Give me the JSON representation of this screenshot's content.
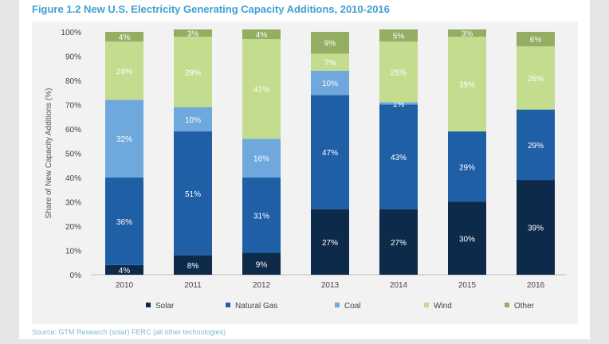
{
  "figure": {
    "title": "Figure 1.2  New U.S. Electricity Generating Capacity Additions, 2010-2016",
    "source": "Source: GTM Research (solar) FERC (all other technologies)"
  },
  "chart_data": {
    "type": "bar",
    "stacked": true,
    "title": "Figure 1.2  New U.S. Electricity Generating Capacity Additions, 2010-2016",
    "xlabel": "",
    "ylabel": "Share of New Capacity Additions (%)",
    "ylim": [
      0,
      100
    ],
    "yticks": [
      "0%",
      "10%",
      "20%",
      "30%",
      "40%",
      "50%",
      "60%",
      "70%",
      "80%",
      "90%",
      "100%"
    ],
    "categories": [
      "2010",
      "2011",
      "2012",
      "2013",
      "2014",
      "2015",
      "2016"
    ],
    "legend_position": "bottom",
    "grid": false,
    "series": [
      {
        "name": "Solar",
        "color": "#0d2a4a",
        "label_color": "#ffffff",
        "values": [
          4,
          8,
          9,
          27,
          27,
          30,
          39
        ],
        "labels": [
          "4%",
          "8%",
          "9%",
          "27%",
          "27%",
          "30%",
          "39%"
        ]
      },
      {
        "name": "Natural Gas",
        "color": "#1f5fa6",
        "label_color": "#ffffff",
        "values": [
          36,
          51,
          31,
          47,
          43,
          29,
          29
        ],
        "labels": [
          "36%",
          "51%",
          "31%",
          "47%",
          "43%",
          "29%",
          "29%"
        ]
      },
      {
        "name": "Coal",
        "color": "#6fa8dc",
        "label_color": "#ffffff",
        "values": [
          32,
          10,
          16,
          10,
          1,
          0,
          0
        ],
        "labels": [
          "32%",
          "10%",
          "16%",
          "10%",
          "1%",
          "",
          ""
        ]
      },
      {
        "name": "Wind",
        "color": "#c3dc8d",
        "label_color": "#ffffff",
        "values": [
          24,
          29,
          41,
          7,
          25,
          39,
          26
        ],
        "labels": [
          "24%",
          "29%",
          "41%",
          "7%",
          "25%",
          "39%",
          "26%"
        ]
      },
      {
        "name": "Other",
        "color": "#93ad63",
        "label_color": "#ffffff",
        "values": [
          4,
          3,
          4,
          9,
          5,
          3,
          6
        ],
        "labels": [
          "4%",
          "3%",
          "4%",
          "9%",
          "5%",
          "3%",
          "6%"
        ]
      }
    ]
  }
}
